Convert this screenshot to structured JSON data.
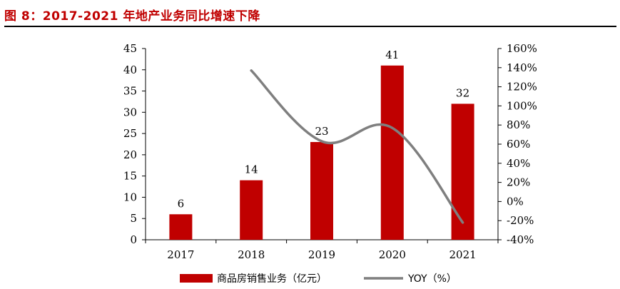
{
  "title": "图 8：2017-2021 年地产业务同比增速下降",
  "colors": {
    "bar": "#c00000",
    "line": "#7f7f7f",
    "title": "#c00000"
  },
  "chart_data": {
    "type": "bar",
    "categories": [
      "2017",
      "2018",
      "2019",
      "2020",
      "2021"
    ],
    "series": [
      {
        "name": "商品房销售业务（亿元）",
        "type": "bar",
        "axis": "left",
        "values": [
          6,
          14,
          23,
          41,
          32
        ],
        "labels": [
          "6",
          "14",
          "23",
          "41",
          "32"
        ]
      },
      {
        "name": "YOY（%）",
        "type": "line",
        "axis": "right",
        "values": [
          null,
          137,
          63,
          77,
          -22
        ]
      }
    ],
    "y_left": {
      "min": 0,
      "max": 45,
      "step": 5,
      "ticks": [
        "0",
        "5",
        "10",
        "15",
        "20",
        "25",
        "30",
        "35",
        "40",
        "45"
      ]
    },
    "y_right": {
      "min": -40,
      "max": 160,
      "step": 20,
      "ticks": [
        "-40%",
        "-20%",
        "0%",
        "20%",
        "40%",
        "60%",
        "80%",
        "100%",
        "120%",
        "140%",
        "160%"
      ]
    },
    "legend_position": "bottom",
    "grid": false
  }
}
